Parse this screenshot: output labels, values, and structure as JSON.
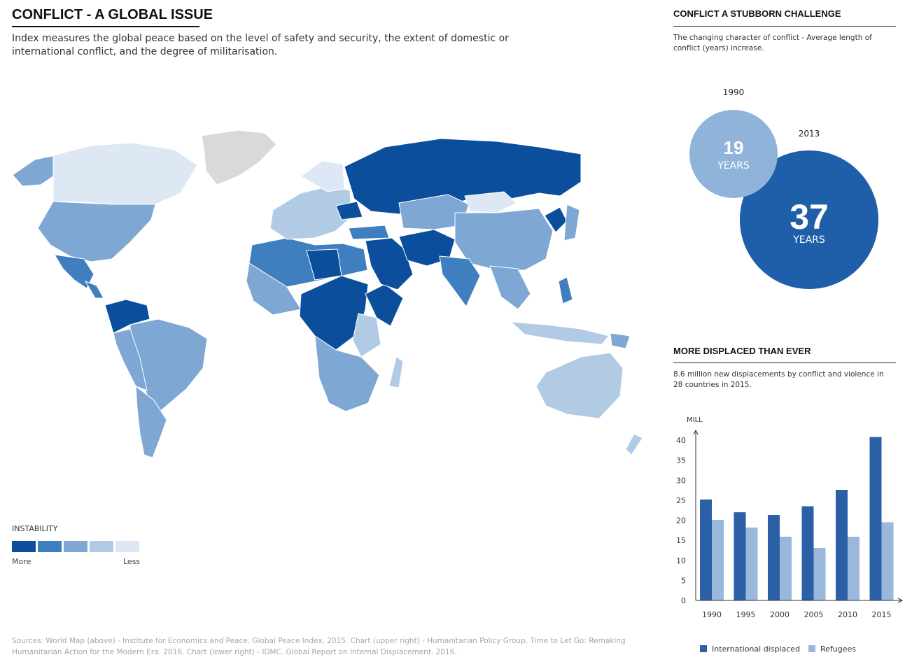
{
  "header": {
    "title": "CONFLICT - A GLOBAL ISSUE",
    "subtitle": "Index measures the global peace based on the level of safety and security, the extent of domestic or international conflict, and the degree of militarisation."
  },
  "legend": {
    "title": "INSTABILITY",
    "more_label": "More",
    "less_label": "Less",
    "colors": [
      "#0b4f9c",
      "#3f7fbf",
      "#7fa7d3",
      "#b2cbe5",
      "#dde8f4"
    ]
  },
  "map_colors": {
    "level1": "#0b4f9c",
    "level2": "#3f7fbf",
    "level3": "#7fa7d3",
    "level4": "#b2cbe5",
    "level5": "#dde8f4",
    "no_data": "#d9d9d9"
  },
  "stubborn": {
    "title": "CONFLICT A STUBBORN CHALLENGE",
    "description": "The changing character of conflict - Average length of conflict (years) increase.",
    "label_1990": "1990",
    "label_2013": "2013",
    "value_1990": "19",
    "value_2013": "37",
    "unit": "YEARS",
    "color_1990": "#8fb3d9",
    "color_2013": "#1f5ea8"
  },
  "displaced": {
    "title": "MORE DISPLACED THAN EVER",
    "description": "8.6 million new displacements by conflict and violence in 28 countries in 2015."
  },
  "chart_data": {
    "type": "bar",
    "title": "MORE DISPLACED THAN EVER",
    "ylabel": "MILL",
    "xlabel": "",
    "ylim": [
      0,
      40
    ],
    "yticks": [
      "0",
      "5",
      "10",
      "15",
      "20",
      "25",
      "30",
      "35",
      "40"
    ],
    "categories": [
      "1990",
      "1995",
      "2000",
      "2005",
      "2010",
      "2015"
    ],
    "series": [
      {
        "name": "International displaced",
        "color": "#2b5fa6",
        "values": [
          25.2,
          22,
          21.3,
          23.5,
          27.6,
          40.8
        ]
      },
      {
        "name": "Refugees",
        "color": "#9ab8db",
        "values": [
          20.1,
          18.2,
          15.9,
          13.1,
          15.9,
          19.5
        ]
      }
    ],
    "legend": "bottom"
  },
  "sources": {
    "text": "Sources: World Map (above) - Institute for Economics and Peace. Global Peace Index. 2015. Chart (upper right) - Humanitarian Policy Group. Time to Let Go: Remaking Humanitarian Action for the Modern Era. 2016. Chart (lower right) - IDMC. Global Report on Internal Displacement. 2016."
  }
}
